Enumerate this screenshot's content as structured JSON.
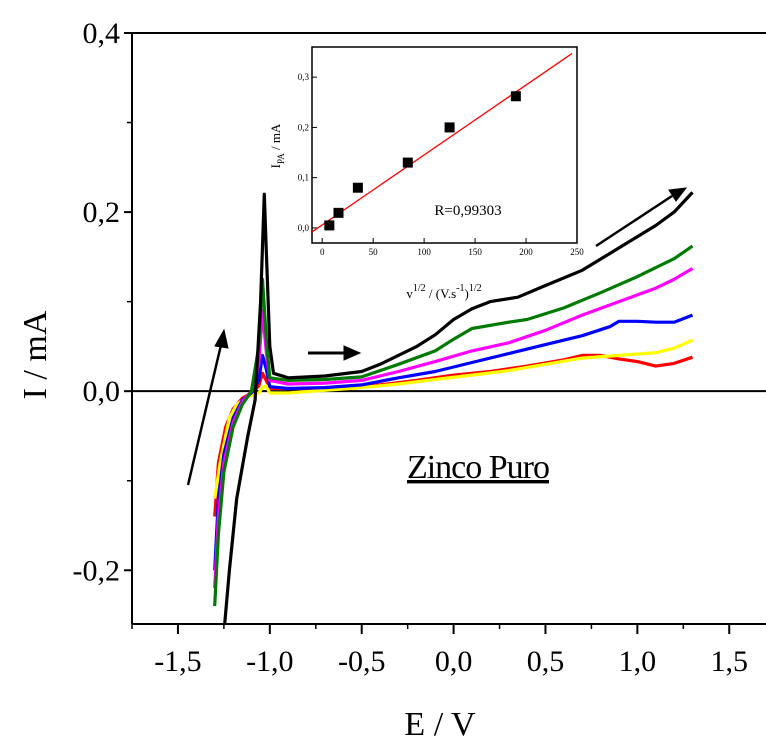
{
  "chart_data": [
    {
      "type": "line",
      "title": "",
      "xlabel": "E / V",
      "ylabel": "I / mA",
      "xlim": [
        -1.75,
        1.7
      ],
      "ylim": [
        -0.26,
        0.4
      ],
      "x_ticks": [
        "-1,5",
        "-1,0",
        "-0,5",
        "0,0",
        "0,5",
        "1,0",
        "1,5"
      ],
      "x_tick_values": [
        -1.5,
        -1.0,
        -0.5,
        0.0,
        0.5,
        1.0,
        1.5
      ],
      "y_ticks": [
        "-0,2",
        "0,0",
        "0,2",
        "0,4"
      ],
      "y_tick_values": [
        -0.2,
        0.0,
        0.2,
        0.4
      ],
      "zero_line": true,
      "annotation": "Zinco Puro",
      "series": [
        {
          "color": "#ff0000",
          "points": [
            [
              -1.3,
              -0.14
            ],
            [
              -1.28,
              -0.08
            ],
            [
              -1.24,
              -0.04
            ],
            [
              -1.2,
              -0.02
            ],
            [
              -1.15,
              -0.008
            ],
            [
              -1.1,
              -0.002
            ],
            [
              -1.06,
              0.006
            ],
            [
              -1.04,
              0.02
            ],
            [
              -1.02,
              0.012
            ],
            [
              -1.0,
              0.003
            ],
            [
              -0.8,
              0.003
            ],
            [
              -0.6,
              0.004
            ],
            [
              -0.4,
              0.007
            ],
            [
              -0.2,
              0.012
            ],
            [
              0.0,
              0.018
            ],
            [
              0.2,
              0.022
            ],
            [
              0.4,
              0.028
            ],
            [
              0.6,
              0.035
            ],
            [
              0.7,
              0.04
            ],
            [
              0.8,
              0.04
            ],
            [
              0.9,
              0.036
            ],
            [
              1.0,
              0.033
            ],
            [
              1.1,
              0.028
            ],
            [
              1.2,
              0.031
            ],
            [
              1.3,
              0.038
            ]
          ]
        },
        {
          "color": "#ffff00",
          "points": [
            [
              -1.3,
              -0.12
            ],
            [
              -1.27,
              -0.08
            ],
            [
              -1.22,
              -0.03
            ],
            [
              -1.18,
              -0.015
            ],
            [
              -1.12,
              -0.006
            ],
            [
              -1.06,
              -0.002
            ],
            [
              -1.04,
              0.004
            ],
            [
              -1.02,
              0.006
            ],
            [
              -1.0,
              -0.002
            ],
            [
              -0.9,
              -0.002
            ],
            [
              -0.7,
              0.001
            ],
            [
              -0.5,
              0.004
            ],
            [
              -0.3,
              0.008
            ],
            [
              -0.1,
              0.013
            ],
            [
              0.1,
              0.018
            ],
            [
              0.3,
              0.023
            ],
            [
              0.5,
              0.03
            ],
            [
              0.7,
              0.037
            ],
            [
              0.9,
              0.04
            ],
            [
              1.1,
              0.043
            ],
            [
              1.2,
              0.048
            ],
            [
              1.3,
              0.057
            ]
          ]
        },
        {
          "color": "#0000ff",
          "points": [
            [
              -1.3,
              -0.2
            ],
            [
              -1.28,
              -0.12
            ],
            [
              -1.25,
              -0.07
            ],
            [
              -1.2,
              -0.03
            ],
            [
              -1.15,
              -0.01
            ],
            [
              -1.1,
              -0.002
            ],
            [
              -1.06,
              0.012
            ],
            [
              -1.04,
              0.04
            ],
            [
              -1.02,
              0.025
            ],
            [
              -1.0,
              0.005
            ],
            [
              -0.9,
              0.003
            ],
            [
              -0.7,
              0.004
            ],
            [
              -0.5,
              0.007
            ],
            [
              -0.3,
              0.015
            ],
            [
              -0.1,
              0.022
            ],
            [
              0.1,
              0.032
            ],
            [
              0.3,
              0.042
            ],
            [
              0.5,
              0.052
            ],
            [
              0.7,
              0.062
            ],
            [
              0.85,
              0.072
            ],
            [
              0.9,
              0.078
            ],
            [
              1.0,
              0.078
            ],
            [
              1.1,
              0.077
            ],
            [
              1.2,
              0.077
            ],
            [
              1.3,
              0.085
            ]
          ]
        },
        {
          "color": "#ff00ff",
          "points": [
            [
              -1.3,
              -0.22
            ],
            [
              -1.28,
              -0.14
            ],
            [
              -1.25,
              -0.08
            ],
            [
              -1.2,
              -0.035
            ],
            [
              -1.15,
              -0.012
            ],
            [
              -1.1,
              0.0
            ],
            [
              -1.06,
              0.03
            ],
            [
              -1.04,
              0.09
            ],
            [
              -1.02,
              0.045
            ],
            [
              -1.0,
              0.012
            ],
            [
              -0.9,
              0.008
            ],
            [
              -0.7,
              0.009
            ],
            [
              -0.5,
              0.012
            ],
            [
              -0.3,
              0.022
            ],
            [
              -0.1,
              0.033
            ],
            [
              0.1,
              0.045
            ],
            [
              0.3,
              0.054
            ],
            [
              0.5,
              0.068
            ],
            [
              0.7,
              0.085
            ],
            [
              0.9,
              0.1
            ],
            [
              1.1,
              0.115
            ],
            [
              1.2,
              0.125
            ],
            [
              1.3,
              0.137
            ]
          ]
        },
        {
          "color": "#007a00",
          "points": [
            [
              -1.3,
              -0.24
            ],
            [
              -1.28,
              -0.16
            ],
            [
              -1.25,
              -0.09
            ],
            [
              -1.2,
              -0.04
            ],
            [
              -1.15,
              -0.015
            ],
            [
              -1.1,
              0.0
            ],
            [
              -1.06,
              0.05
            ],
            [
              -1.04,
              0.125
            ],
            [
              -1.02,
              0.06
            ],
            [
              -1.0,
              0.015
            ],
            [
              -0.9,
              0.012
            ],
            [
              -0.7,
              0.013
            ],
            [
              -0.5,
              0.016
            ],
            [
              -0.3,
              0.03
            ],
            [
              -0.1,
              0.045
            ],
            [
              0.0,
              0.058
            ],
            [
              0.1,
              0.07
            ],
            [
              0.3,
              0.077
            ],
            [
              0.4,
              0.08
            ],
            [
              0.6,
              0.093
            ],
            [
              0.8,
              0.11
            ],
            [
              1.0,
              0.128
            ],
            [
              1.2,
              0.148
            ],
            [
              1.3,
              0.162
            ]
          ]
        },
        {
          "color": "#000000",
          "points": [
            [
              -1.25,
              -0.27
            ],
            [
              -1.22,
              -0.2
            ],
            [
              -1.18,
              -0.12
            ],
            [
              -1.12,
              -0.05
            ],
            [
              -1.08,
              -0.01
            ],
            [
              -1.05,
              0.1
            ],
            [
              -1.03,
              0.22
            ],
            [
              -1.02,
              0.16
            ],
            [
              -1.0,
              0.05
            ],
            [
              -0.98,
              0.02
            ],
            [
              -0.9,
              0.015
            ],
            [
              -0.7,
              0.017
            ],
            [
              -0.5,
              0.022
            ],
            [
              -0.4,
              0.03
            ],
            [
              -0.2,
              0.05
            ],
            [
              -0.1,
              0.063
            ],
            [
              0.0,
              0.08
            ],
            [
              0.1,
              0.092
            ],
            [
              0.2,
              0.1
            ],
            [
              0.35,
              0.105
            ],
            [
              0.5,
              0.118
            ],
            [
              0.7,
              0.135
            ],
            [
              0.9,
              0.16
            ],
            [
              1.1,
              0.185
            ],
            [
              1.2,
              0.2
            ],
            [
              1.3,
              0.222
            ]
          ]
        }
      ]
    },
    {
      "type": "scatter",
      "title": "",
      "xlabel": "v^1/2 / (V.s^-1)^1/2",
      "xlabel_parts": [
        "v",
        "1/2",
        " / (V.s",
        "-1",
        ")",
        "1/2"
      ],
      "ylabel": "I_PA / mA",
      "ylabel_parts": [
        "I",
        "PA",
        " / mA"
      ],
      "xlim": [
        -10,
        250
      ],
      "ylim": [
        -0.03,
        0.36
      ],
      "x_ticks": [
        "0",
        "50",
        "100",
        "150",
        "200",
        "250"
      ],
      "x_tick_values": [
        0,
        50,
        100,
        150,
        200,
        250
      ],
      "y_ticks": [
        "0,0",
        "0,1",
        "0,2",
        "0,3"
      ],
      "y_tick_values": [
        0.0,
        0.1,
        0.2,
        0.3
      ],
      "x": [
        7,
        16,
        35,
        84,
        125,
        190
      ],
      "y": [
        0.005,
        0.03,
        0.08,
        0.13,
        0.2,
        0.262
      ],
      "fit": {
        "color": "#ff0000",
        "x": [
          -10,
          245
        ],
        "y": [
          -0.008,
          0.347
        ]
      },
      "annotation": "R=0,99303"
    }
  ]
}
